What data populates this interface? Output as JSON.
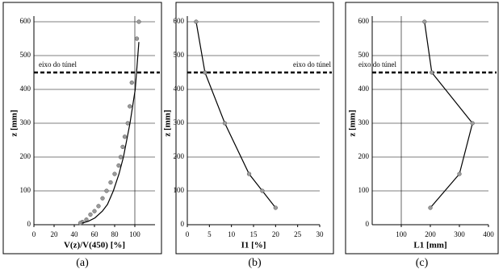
{
  "chart_data": [
    {
      "type": "line",
      "caption": "(a)",
      "xlabel": "V(z)/V(450) [%]",
      "ylabel": "z [mm]",
      "annotation": "eixo do túnel",
      "hline": 450,
      "xlim": [
        0,
        120
      ],
      "xticks": [
        0,
        20,
        40,
        60,
        80,
        100
      ],
      "ylim": [
        0,
        600
      ],
      "yticks": [
        0,
        100,
        200,
        300,
        400,
        500,
        600
      ],
      "vlines": [
        100
      ],
      "grid": true,
      "series": [
        {
          "mode": "markers",
          "color": "#9a9a9a",
          "x": [
            104,
            102,
            97,
            95,
            93,
            90,
            88,
            86,
            84,
            80,
            76,
            72,
            68,
            64,
            60,
            56,
            52,
            48,
            46
          ],
          "values": [
            600,
            550,
            420,
            350,
            300,
            260,
            230,
            200,
            175,
            150,
            125,
            100,
            78,
            55,
            40,
            30,
            15,
            8,
            5
          ]
        },
        {
          "mode": "line",
          "color": "#000000",
          "x": [
            48,
            53.8,
            60.4,
            67.8,
            72.9,
            78.7,
            84.3,
            88.7,
            95.2,
            100.4,
            104
          ],
          "values": [
            5,
            10,
            20,
            40,
            60,
            100,
            150,
            200,
            300,
            400,
            540
          ]
        }
      ]
    },
    {
      "type": "line",
      "caption": "(b)",
      "xlabel": "I1 [%]",
      "ylabel": "z [mm]",
      "annotation": "eixo do túnel",
      "hline": 450,
      "xlim": [
        0,
        30
      ],
      "xticks": [
        0,
        5,
        10,
        15,
        20,
        25,
        30
      ],
      "ylim": [
        0,
        600
      ],
      "yticks": [
        0,
        100,
        200,
        300,
        400,
        500,
        600
      ],
      "vlines": [],
      "grid": true,
      "series": [
        {
          "mode": "line+markers",
          "color": "#000000",
          "x": [
            2,
            4,
            8.5,
            14,
            17,
            20
          ],
          "values": [
            600,
            450,
            300,
            150,
            100,
            50
          ]
        }
      ]
    },
    {
      "type": "line",
      "caption": "(c)",
      "xlabel": "L1 [mm]",
      "ylabel": "z [mm]",
      "annotation": "eixo do túnel",
      "hline": 450,
      "xlim": [
        0,
        400
      ],
      "xticks": [
        100,
        200,
        300,
        400
      ],
      "ylim": [
        0,
        600
      ],
      "yticks": [
        0,
        100,
        200,
        300,
        400,
        500,
        600
      ],
      "vlines": [
        100
      ],
      "grid": true,
      "series": [
        {
          "mode": "line+markers",
          "color": "#000000",
          "x": [
            180,
            205,
            345,
            300,
            200
          ],
          "values": [
            600,
            450,
            300,
            150,
            50
          ]
        }
      ]
    }
  ]
}
